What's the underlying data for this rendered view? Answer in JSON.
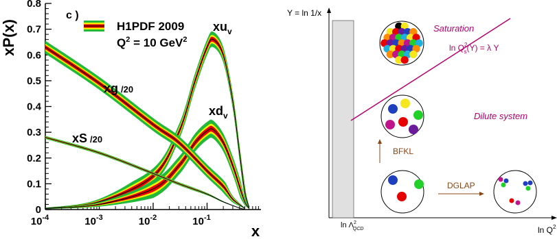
{
  "left_panel": {
    "panel_tag": "c )",
    "legend_title": "H1PDF 2009",
    "legend_q2": "Q",
    "legend_q2_sup": "2",
    "legend_q2_rest": " = 10 GeV",
    "legend_q2_sup2": "2",
    "y_title": "xP(x)",
    "x_title": "x",
    "labels": {
      "xuv_main": "xu",
      "xuv_sub": "v",
      "xdv_main": "xd",
      "xdv_sub": "v",
      "xg_main": "xg",
      "xg_scale": "/20",
      "xs_main": "xS",
      "xs_scale": "/20"
    },
    "y_ticks": [
      "0",
      "0.1",
      "0.2",
      "0.3",
      "0.4",
      "0.5",
      "0.6",
      "0.7",
      "0.8"
    ],
    "x_ticks": [
      {
        "base": "10",
        "exp": "-4"
      },
      {
        "base": "10",
        "exp": "-3"
      },
      {
        "base": "10",
        "exp": "-2"
      },
      {
        "base": "10",
        "exp": "-1"
      }
    ],
    "colors": {
      "outer": "#22b83a",
      "middle": "#f2f200",
      "inner": "#e60000",
      "central": "#000000"
    }
  },
  "chart_data": {
    "type": "line",
    "xscale": "log",
    "xlim": [
      0.0001,
      1
    ],
    "ylim": [
      0,
      0.8
    ],
    "x_ticks": [
      0.0001,
      0.001,
      0.01,
      0.1
    ],
    "y_ticks": [
      0,
      0.1,
      0.2,
      0.3,
      0.4,
      0.5,
      0.6,
      0.7,
      0.8
    ],
    "grid": false,
    "legend": "top-left",
    "series": [
      {
        "name": "xu_v",
        "points": [
          [
            0.0001,
            0.005
          ],
          [
            0.001,
            0.03
          ],
          [
            0.01,
            0.13
          ],
          [
            0.03,
            0.3
          ],
          [
            0.06,
            0.5
          ],
          [
            0.1,
            0.63
          ],
          [
            0.13,
            0.66
          ],
          [
            0.2,
            0.6
          ],
          [
            0.3,
            0.42
          ],
          [
            0.4,
            0.22
          ],
          [
            0.5,
            0.07
          ],
          [
            0.6,
            0.01
          ]
        ],
        "band_width": 0.03
      },
      {
        "name": "xd_v",
        "points": [
          [
            0.0001,
            0.004
          ],
          [
            0.001,
            0.02
          ],
          [
            0.01,
            0.08
          ],
          [
            0.03,
            0.17
          ],
          [
            0.06,
            0.26
          ],
          [
            0.1,
            0.305
          ],
          [
            0.13,
            0.31
          ],
          [
            0.2,
            0.26
          ],
          [
            0.3,
            0.17
          ],
          [
            0.4,
            0.09
          ],
          [
            0.5,
            0.03
          ],
          [
            0.6,
            0.005
          ]
        ],
        "band_width": 0.035
      },
      {
        "name": "xg/20",
        "points": [
          [
            0.0001,
            0.63
          ],
          [
            0.001,
            0.49
          ],
          [
            0.01,
            0.33
          ],
          [
            0.03,
            0.26
          ],
          [
            0.1,
            0.15
          ],
          [
            0.2,
            0.09
          ],
          [
            0.3,
            0.04
          ],
          [
            0.5,
            0.005
          ]
        ],
        "band_width": 0.025
      },
      {
        "name": "xS/20",
        "points": [
          [
            0.0001,
            0.28
          ],
          [
            0.001,
            0.22
          ],
          [
            0.01,
            0.14
          ],
          [
            0.03,
            0.1
          ],
          [
            0.1,
            0.06
          ],
          [
            0.2,
            0.03
          ],
          [
            0.4,
            0.006
          ],
          [
            0.5,
            0.002
          ]
        ],
        "band_width": 0.006
      }
    ]
  },
  "right_panel": {
    "y_axis_label": "Y = ln 1/x",
    "x_axis_label": "ln Q",
    "x_axis_sup": "2",
    "lambda_label": "ln Λ",
    "lambda_sup": "2",
    "lambda_sub": "QCD",
    "saturation_label": "Saturation",
    "qs_label_pre": "ln Q",
    "qs_label_sup": "2",
    "qs_label_sub": "s",
    "qs_label_post": "(Y) = λ Y",
    "dilute_label": "Dilute system",
    "bfkl_label": "BFKL",
    "dglap_label": "DGLAP",
    "colors": {
      "accent": "#b5006e",
      "arrow": "#8b4513",
      "band": "#e0e0e0"
    }
  }
}
